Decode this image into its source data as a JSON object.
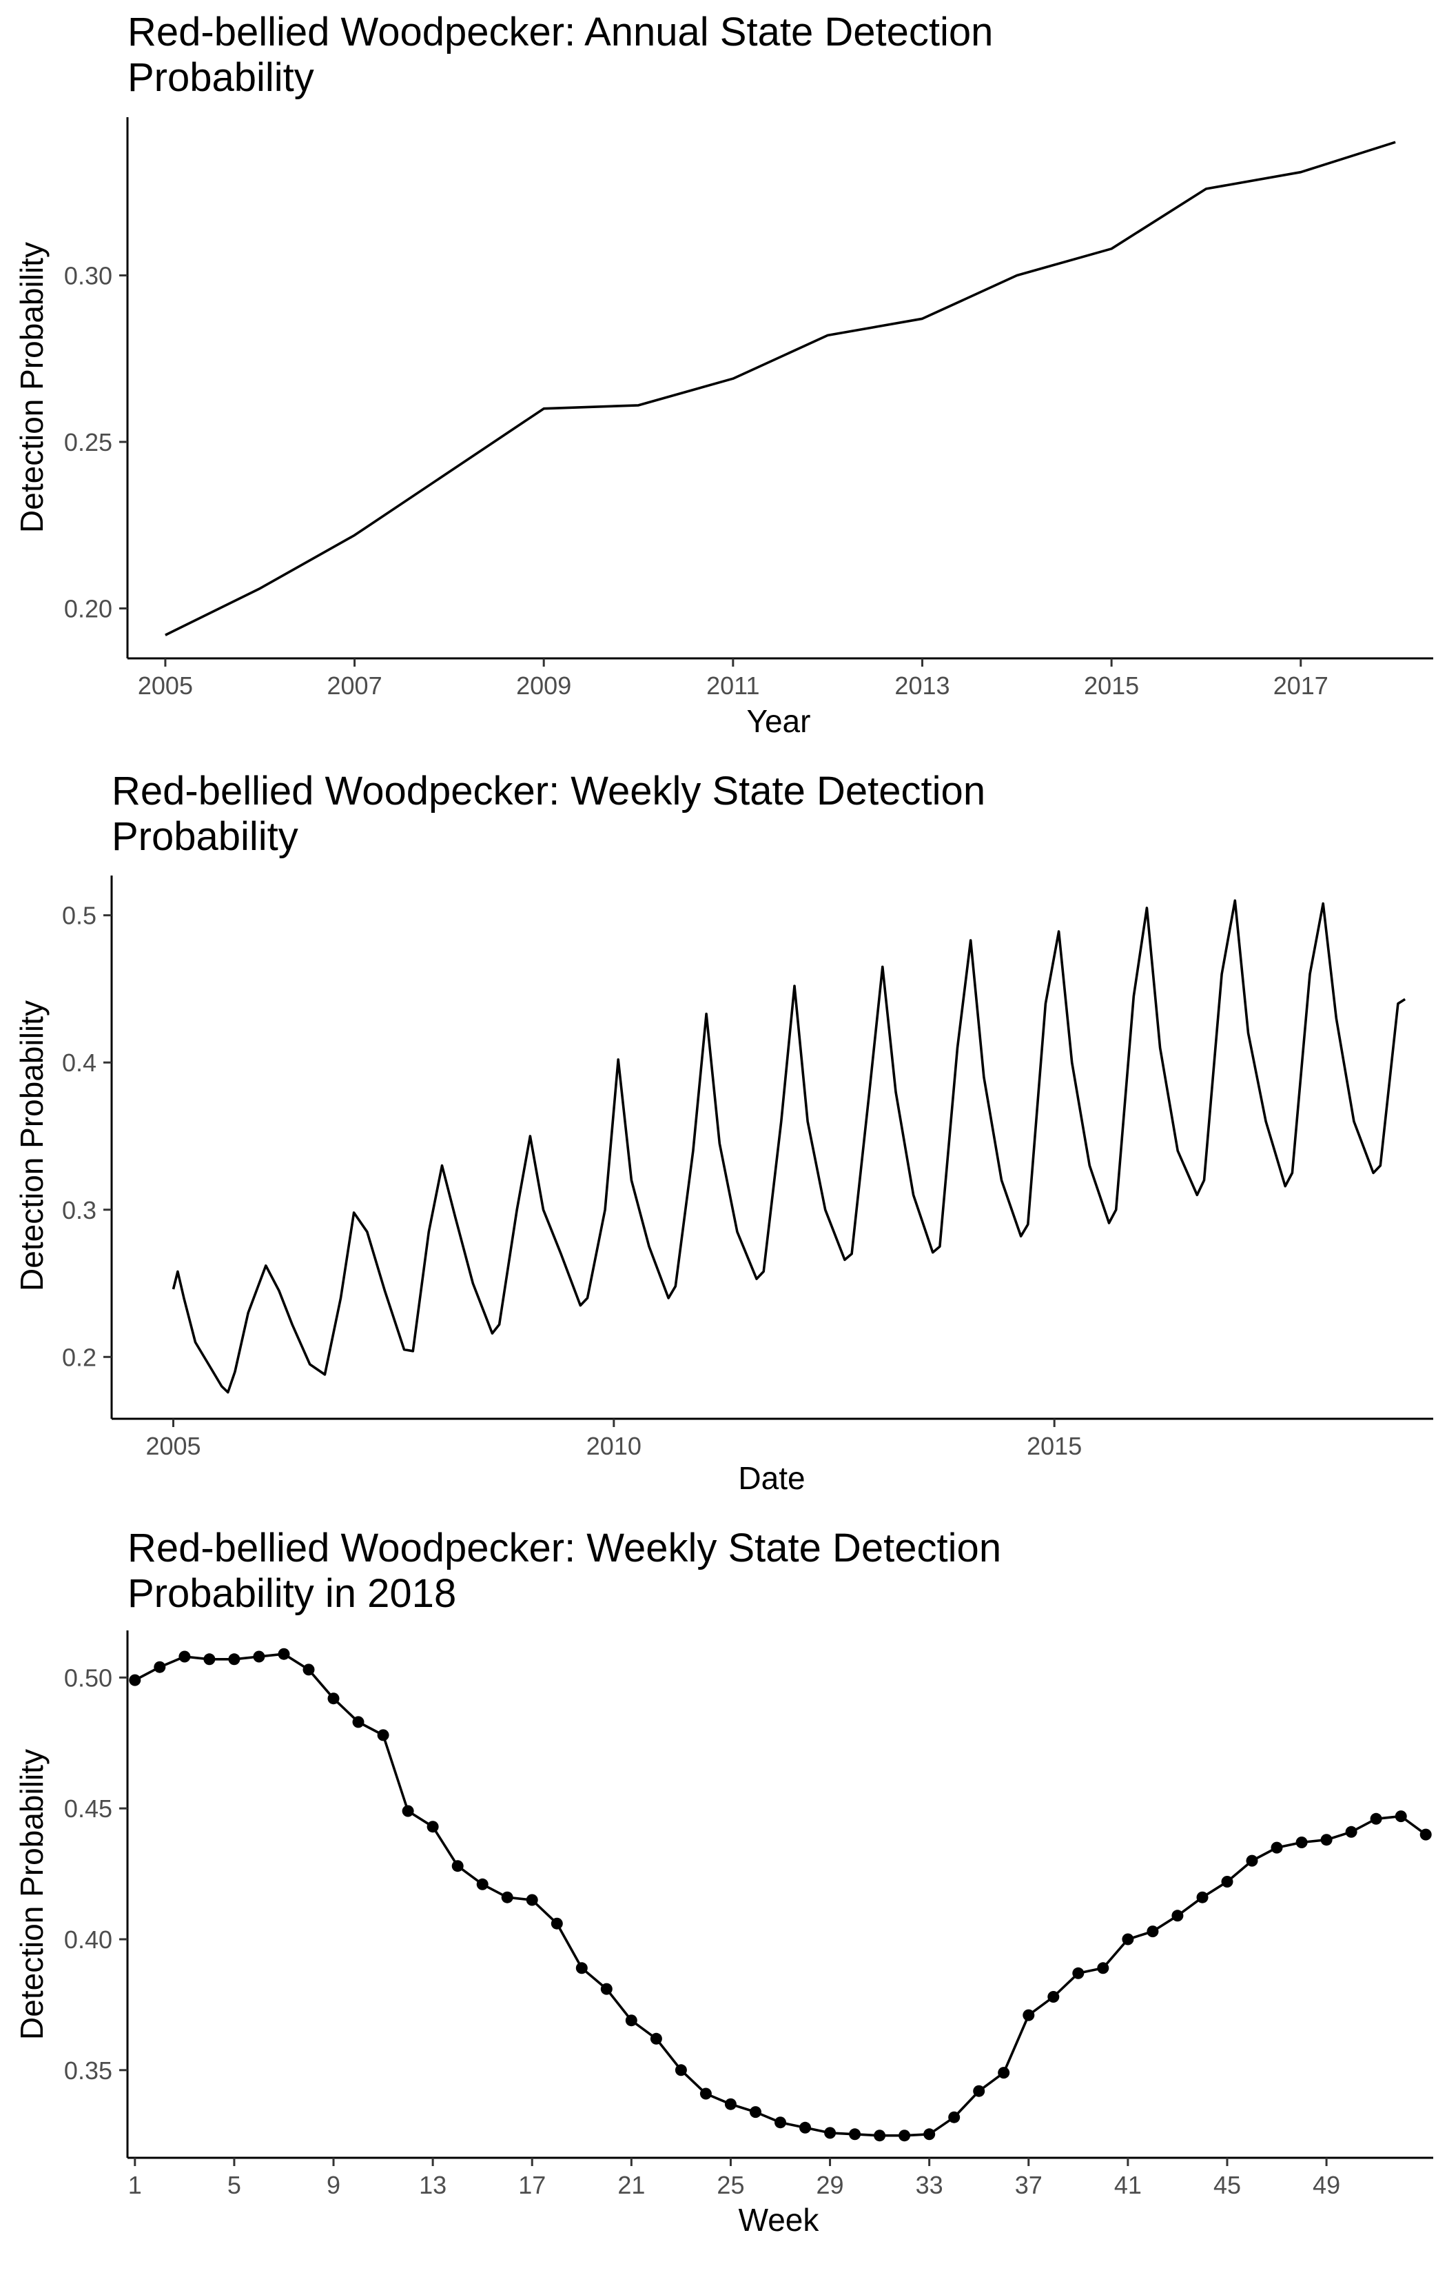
{
  "chart_data": [
    {
      "type": "line",
      "title_lines": [
        "Red-bellied Woodpecker: Annual State Detection",
        "Probability"
      ],
      "xlabel": "Year",
      "ylabel": "Detection Probability",
      "xlim": [
        2004.6,
        2018.4
      ],
      "ylim": [
        0.185,
        0.3475
      ],
      "x_ticks": [
        2005,
        2007,
        2009,
        2011,
        2013,
        2015,
        2017
      ],
      "x_tick_labels": [
        "2005",
        "2007",
        "2009",
        "2011",
        "2013",
        "2015",
        "2017"
      ],
      "y_ticks": [
        0.2,
        0.25,
        0.3
      ],
      "y_tick_labels": [
        "0.20",
        "0.25",
        "0.30"
      ],
      "grid": false,
      "x": [
        2005,
        2006,
        2007,
        2008,
        2009,
        2010,
        2011,
        2012,
        2013,
        2014,
        2015,
        2016,
        2017,
        2018
      ],
      "y": [
        0.192,
        0.206,
        0.222,
        0.241,
        0.26,
        0.261,
        0.269,
        0.282,
        0.287,
        0.3,
        0.308,
        0.326,
        0.331,
        0.34
      ]
    },
    {
      "type": "line",
      "title_lines": [
        "Red-bellied Woodpecker: Weekly State Detection",
        "Probability"
      ],
      "xlabel": "Date",
      "ylabel": "Detection Probability",
      "xlim": [
        2004.3,
        2019.3
      ],
      "ylim": [
        0.158,
        0.527
      ],
      "x_ticks": [
        2005,
        2010,
        2015
      ],
      "x_tick_labels": [
        "2005",
        "2010",
        "2015"
      ],
      "y_ticks": [
        0.2,
        0.3,
        0.4,
        0.5
      ],
      "y_tick_labels": [
        "0.2",
        "0.3",
        "0.4",
        "0.5"
      ],
      "grid": false,
      "x": [
        2005.0,
        2005.05,
        2005.12,
        2005.25,
        2005.4,
        2005.55,
        2005.62,
        2005.7,
        2005.85,
        2006.05,
        2006.2,
        2006.35,
        2006.55,
        2006.72,
        2006.9,
        2007.05,
        2007.2,
        2007.4,
        2007.62,
        2007.72,
        2007.9,
        2008.05,
        2008.2,
        2008.4,
        2008.62,
        2008.7,
        2008.9,
        2009.05,
        2009.2,
        2009.4,
        2009.62,
        2009.7,
        2009.9,
        2010.05,
        2010.2,
        2010.4,
        2010.62,
        2010.7,
        2010.9,
        2011.05,
        2011.2,
        2011.4,
        2011.62,
        2011.7,
        2011.9,
        2012.05,
        2012.2,
        2012.4,
        2012.62,
        2012.7,
        2012.9,
        2013.05,
        2013.2,
        2013.4,
        2013.62,
        2013.7,
        2013.9,
        2014.05,
        2014.2,
        2014.4,
        2014.62,
        2014.7,
        2014.9,
        2015.05,
        2015.2,
        2015.4,
        2015.62,
        2015.7,
        2015.9,
        2016.05,
        2016.2,
        2016.4,
        2016.62,
        2016.7,
        2016.9,
        2017.05,
        2017.2,
        2017.4,
        2017.62,
        2017.7,
        2017.9,
        2018.05,
        2018.2,
        2018.4,
        2018.62,
        2018.7,
        2018.9,
        2018.98
      ],
      "y": [
        0.246,
        0.258,
        0.24,
        0.21,
        0.195,
        0.18,
        0.176,
        0.19,
        0.23,
        0.262,
        0.245,
        0.222,
        0.195,
        0.188,
        0.24,
        0.298,
        0.285,
        0.245,
        0.205,
        0.204,
        0.285,
        0.33,
        0.295,
        0.25,
        0.216,
        0.222,
        0.3,
        0.35,
        0.3,
        0.27,
        0.235,
        0.24,
        0.3,
        0.402,
        0.32,
        0.275,
        0.24,
        0.248,
        0.34,
        0.433,
        0.345,
        0.285,
        0.253,
        0.258,
        0.36,
        0.452,
        0.36,
        0.3,
        0.266,
        0.27,
        0.38,
        0.465,
        0.38,
        0.31,
        0.271,
        0.275,
        0.41,
        0.483,
        0.39,
        0.32,
        0.282,
        0.29,
        0.44,
        0.489,
        0.4,
        0.33,
        0.291,
        0.3,
        0.445,
        0.505,
        0.41,
        0.34,
        0.31,
        0.32,
        0.46,
        0.51,
        0.42,
        0.36,
        0.316,
        0.325,
        0.46,
        0.508,
        0.43,
        0.36,
        0.325,
        0.33,
        0.44,
        0.443
      ]
    },
    {
      "type": "line",
      "title_lines": [
        "Red-bellied Woodpecker: Weekly State Detection",
        "Probability in 2018"
      ],
      "xlabel": "Week",
      "ylabel": "Detection Probability",
      "markers": true,
      "xlim": [
        0.7,
        53.3
      ],
      "ylim": [
        0.3165,
        0.518
      ],
      "x_ticks": [
        1,
        5,
        9,
        13,
        17,
        21,
        25,
        29,
        33,
        37,
        41,
        45,
        49
      ],
      "x_tick_labels": [
        "1",
        "5",
        "9",
        "13",
        "17",
        "21",
        "25",
        "29",
        "33",
        "37",
        "41",
        "45",
        "49"
      ],
      "y_ticks": [
        0.35,
        0.4,
        0.45,
        0.5
      ],
      "y_tick_labels": [
        "0.35",
        "0.40",
        "0.45",
        "0.50"
      ],
      "grid": false,
      "x": [
        1,
        2,
        3,
        4,
        5,
        6,
        7,
        8,
        9,
        10,
        11,
        12,
        13,
        14,
        15,
        16,
        17,
        18,
        19,
        20,
        21,
        22,
        23,
        24,
        25,
        26,
        27,
        28,
        29,
        30,
        31,
        32,
        33,
        34,
        35,
        36,
        37,
        38,
        39,
        40,
        41,
        42,
        43,
        44,
        45,
        46,
        47,
        48,
        49,
        50,
        51,
        52,
        53
      ],
      "y": [
        0.499,
        0.504,
        0.508,
        0.507,
        0.507,
        0.508,
        0.509,
        0.503,
        0.492,
        0.483,
        0.478,
        0.449,
        0.443,
        0.428,
        0.421,
        0.416,
        0.415,
        0.406,
        0.389,
        0.381,
        0.369,
        0.362,
        0.35,
        0.341,
        0.337,
        0.334,
        0.33,
        0.328,
        0.326,
        0.3255,
        0.325,
        0.325,
        0.3255,
        0.332,
        0.342,
        0.349,
        0.371,
        0.378,
        0.387,
        0.389,
        0.4,
        0.403,
        0.409,
        0.416,
        0.422,
        0.43,
        0.435,
        0.437,
        0.438,
        0.441,
        0.446,
        0.447,
        0.44
      ]
    }
  ]
}
